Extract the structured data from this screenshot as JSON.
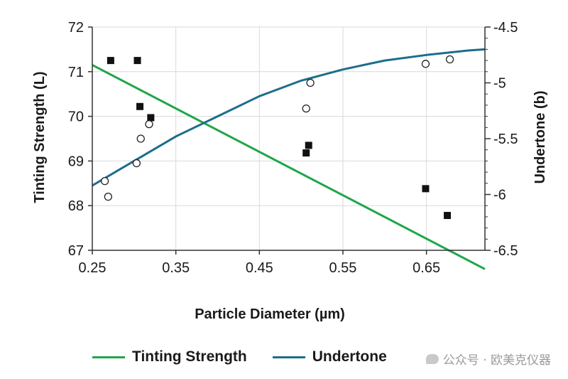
{
  "chart_data": {
    "type": "line",
    "xlabel": "Particle Diameter (µm)",
    "ylabel_left": "Tinting Strength (L)",
    "ylabel_right": "Undertone (b)",
    "xlim": [
      0.25,
      0.72
    ],
    "ylim_left": [
      67,
      72
    ],
    "ylim_right": [
      -6.5,
      -4.5
    ],
    "x_ticks": [
      "0.25",
      "0.35",
      "0.45",
      "0.55",
      "0.65"
    ],
    "y_ticks_left": [
      "67",
      "68",
      "69",
      "70",
      "71",
      "72"
    ],
    "y_ticks_right": [
      "-6.5",
      "-6",
      "-5.5",
      "-5",
      "-4.5"
    ],
    "grid": true,
    "legend_position": "bottom",
    "series": [
      {
        "name": "Tinting Strength",
        "axis": "left",
        "color": "#1fa64a",
        "fit_line": [
          [
            0.25,
            71.15
          ],
          [
            0.72,
            66.58
          ]
        ],
        "points": [
          [
            0.272,
            71.25
          ],
          [
            0.304,
            71.25
          ],
          [
            0.307,
            70.22
          ],
          [
            0.32,
            69.97
          ],
          [
            0.506,
            69.18
          ],
          [
            0.509,
            69.35
          ],
          [
            0.649,
            68.38
          ],
          [
            0.675,
            67.78
          ]
        ]
      },
      {
        "name": "Undertone",
        "axis": "right",
        "color": "#1c6e8c",
        "fit_curve": [
          [
            0.25,
            -5.92
          ],
          [
            0.3,
            -5.7
          ],
          [
            0.35,
            -5.48
          ],
          [
            0.4,
            -5.3
          ],
          [
            0.45,
            -5.12
          ],
          [
            0.5,
            -4.98
          ],
          [
            0.55,
            -4.88
          ],
          [
            0.6,
            -4.8
          ],
          [
            0.65,
            -4.75
          ],
          [
            0.7,
            -4.71
          ],
          [
            0.72,
            -4.7
          ]
        ],
        "points": [
          [
            0.265,
            -5.88
          ],
          [
            0.269,
            -6.02
          ],
          [
            0.303,
            -5.72
          ],
          [
            0.308,
            -5.5
          ],
          [
            0.318,
            -5.37
          ],
          [
            0.506,
            -5.23
          ],
          [
            0.511,
            -5.0
          ],
          [
            0.649,
            -4.83
          ],
          [
            0.678,
            -4.79
          ]
        ]
      }
    ]
  },
  "watermark": "公众号 · 欧美克仪器"
}
